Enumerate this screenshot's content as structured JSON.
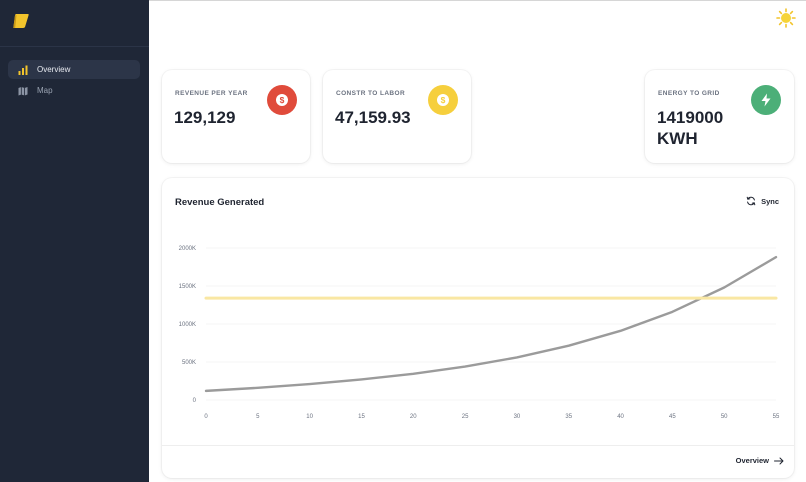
{
  "sidebar": {
    "items": [
      {
        "label": "Overview",
        "icon": "bar-chart-icon",
        "active": true
      },
      {
        "label": "Map",
        "icon": "map-icon",
        "active": false
      }
    ]
  },
  "stats": [
    {
      "title": "REVENUE PER YEAR",
      "value": "129,129",
      "icon": "dollar-icon",
      "color": "#e04b3b"
    },
    {
      "title": "CONSTR TO LABOR",
      "value": "47,159.93",
      "icon": "dollar-icon",
      "color": "#f6cf3d"
    },
    {
      "title": "ENERGY TO GRID",
      "value": "1419000 KWH",
      "icon": "lightning-icon",
      "color": "#4caf78"
    }
  ],
  "chart": {
    "title": "Revenue Generated",
    "sync_label": "Sync",
    "footer_link": "Overview"
  },
  "chart_data": {
    "type": "line",
    "title": "Revenue Generated",
    "xlabel": "",
    "ylabel": "",
    "x_ticks": [
      "0",
      "5",
      "10",
      "15",
      "20",
      "25",
      "30",
      "35",
      "40",
      "45",
      "50",
      "55"
    ],
    "y_ticks": [
      "0",
      "500K",
      "1000K",
      "1500K",
      "2000K"
    ],
    "xlim": [
      0,
      55
    ],
    "ylim": [
      0,
      2000
    ],
    "grid": true,
    "series": [
      {
        "color": "#9b9b9b",
        "x": [
          0,
          5,
          10,
          15,
          20,
          25,
          30,
          35,
          40,
          45,
          50,
          55
        ],
        "y": [
          120,
          160,
          210,
          270,
          345,
          440,
          560,
          715,
          910,
          1160,
          1480,
          1880
        ]
      },
      {
        "color": "#f9e7a3",
        "x": [
          0,
          55
        ],
        "y": [
          1340,
          1340
        ]
      }
    ]
  }
}
